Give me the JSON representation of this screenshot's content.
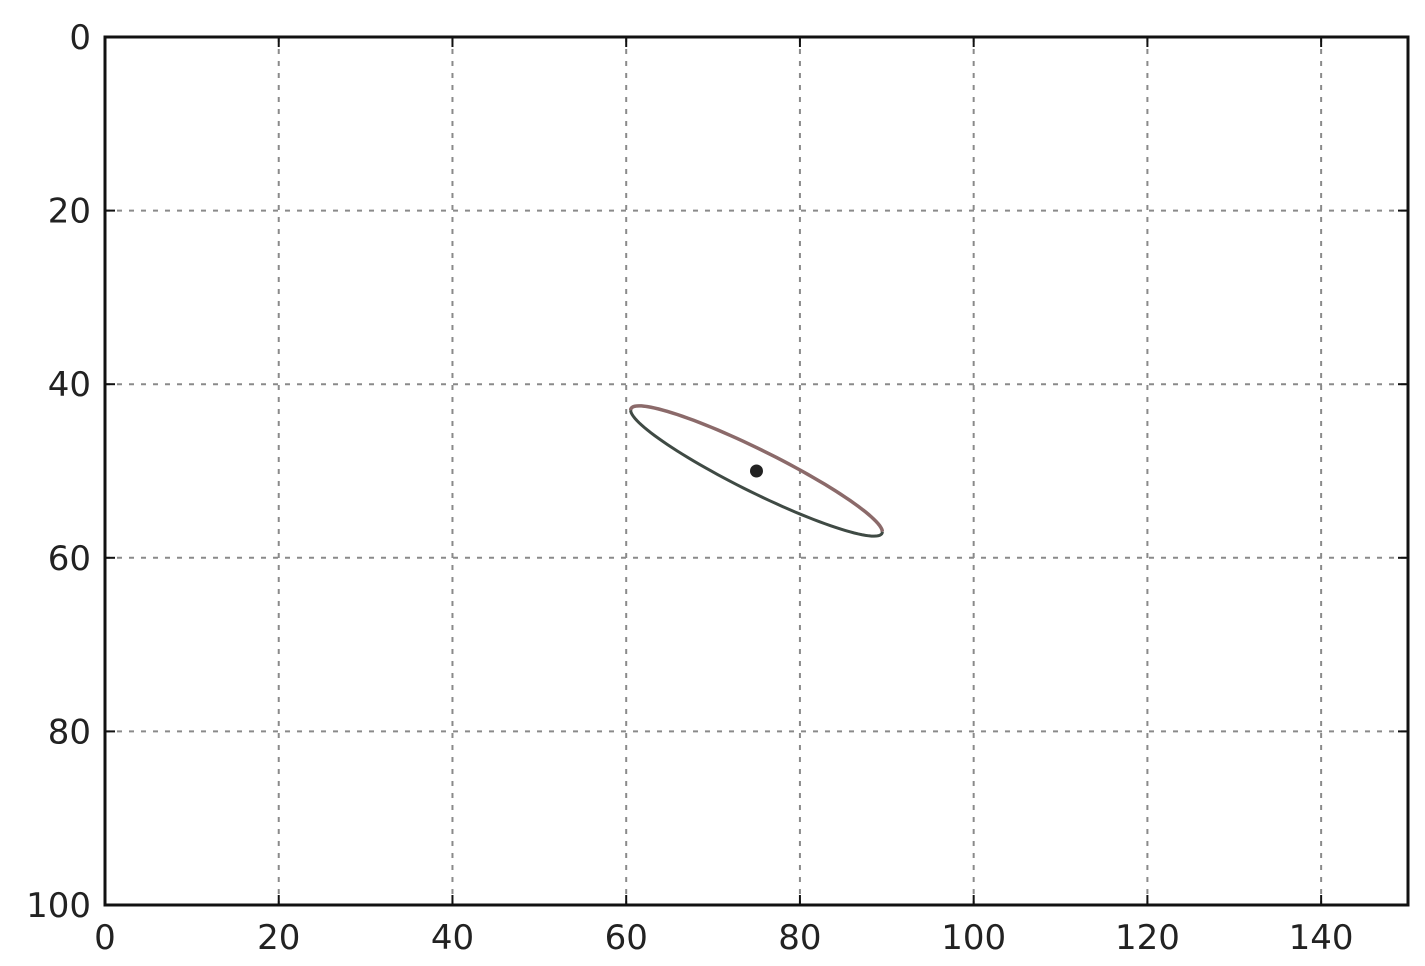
{
  "chart_data": {
    "type": "scatter",
    "title": "",
    "xlabel": "",
    "ylabel": "",
    "xlim": [
      0,
      150
    ],
    "ylim": [
      0,
      100
    ],
    "y_inverted": true,
    "grid": true,
    "grid_style": "dotted",
    "x_ticks": [
      0,
      20,
      40,
      60,
      80,
      100,
      120,
      140
    ],
    "y_ticks": [
      0,
      20,
      40,
      60,
      80,
      100
    ],
    "x_tick_labels": [
      "0",
      "20",
      "40",
      "60",
      "80",
      "100",
      "120",
      "140"
    ],
    "y_tick_labels": [
      "0",
      "20",
      "40",
      "60",
      "80",
      "100"
    ],
    "points": [
      {
        "x": 75,
        "y": 50,
        "color": "#222222"
      }
    ],
    "ellipse": {
      "center": [
        75,
        50
      ],
      "extent_x": [
        67.5,
        82.5
      ],
      "extent_y": [
        35.5,
        64.5
      ],
      "upper_arc_color": "#8b6a6a",
      "lower_arc_color": "#3f4a44"
    }
  }
}
